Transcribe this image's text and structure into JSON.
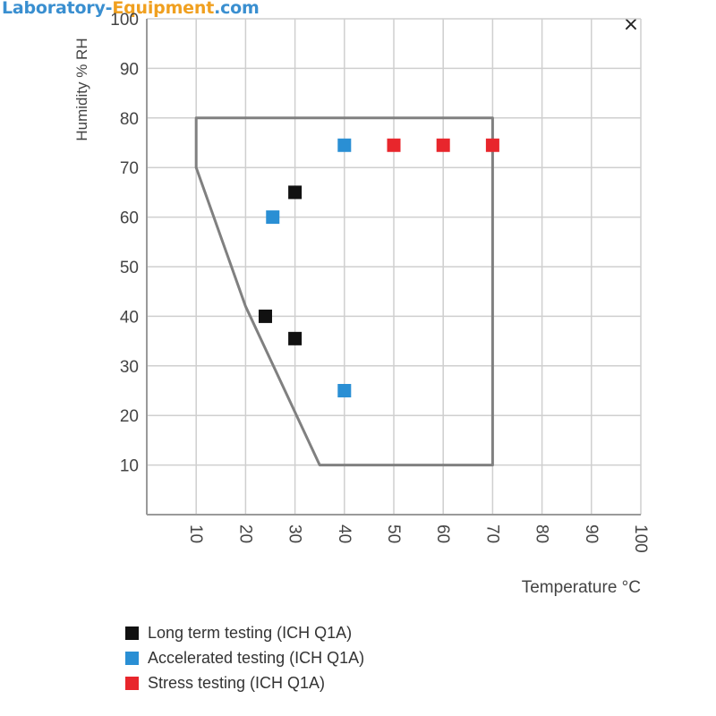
{
  "watermark": {
    "part1": "Laboratory-",
    "part2": "Equipment",
    "part3": ".com"
  },
  "close_glyph": "×",
  "chart_data": {
    "type": "scatter",
    "title": "",
    "xlabel": "Temperature °C",
    "ylabel": "Humidity % RH",
    "xlim": [
      0,
      100
    ],
    "ylim": [
      0,
      100
    ],
    "x_ticks": [
      10,
      20,
      30,
      40,
      50,
      60,
      70,
      80,
      90,
      100
    ],
    "y_ticks": [
      10,
      20,
      30,
      40,
      50,
      60,
      70,
      80,
      90,
      100
    ],
    "grid": true,
    "envelope": [
      [
        10,
        80
      ],
      [
        70,
        80
      ],
      [
        70,
        10
      ],
      [
        35,
        10
      ],
      [
        20,
        42
      ],
      [
        10,
        70
      ]
    ],
    "envelope_color": "#808080",
    "series": [
      {
        "name": "Long term testing (ICH Q1A)",
        "color": "#111111",
        "points": [
          [
            30,
            65
          ],
          [
            24,
            40
          ],
          [
            30,
            35.5
          ]
        ]
      },
      {
        "name": "Accelerated testing (ICH Q1A)",
        "color": "#2a8fd4",
        "points": [
          [
            40,
            74.5
          ],
          [
            25.5,
            60
          ],
          [
            40,
            25
          ]
        ]
      },
      {
        "name": "Stress testing (ICH Q1A)",
        "color": "#e8262c",
        "points": [
          [
            50,
            74.5
          ],
          [
            60,
            74.5
          ],
          [
            70,
            74.5
          ]
        ]
      }
    ],
    "legend_position": "bottom-left"
  }
}
